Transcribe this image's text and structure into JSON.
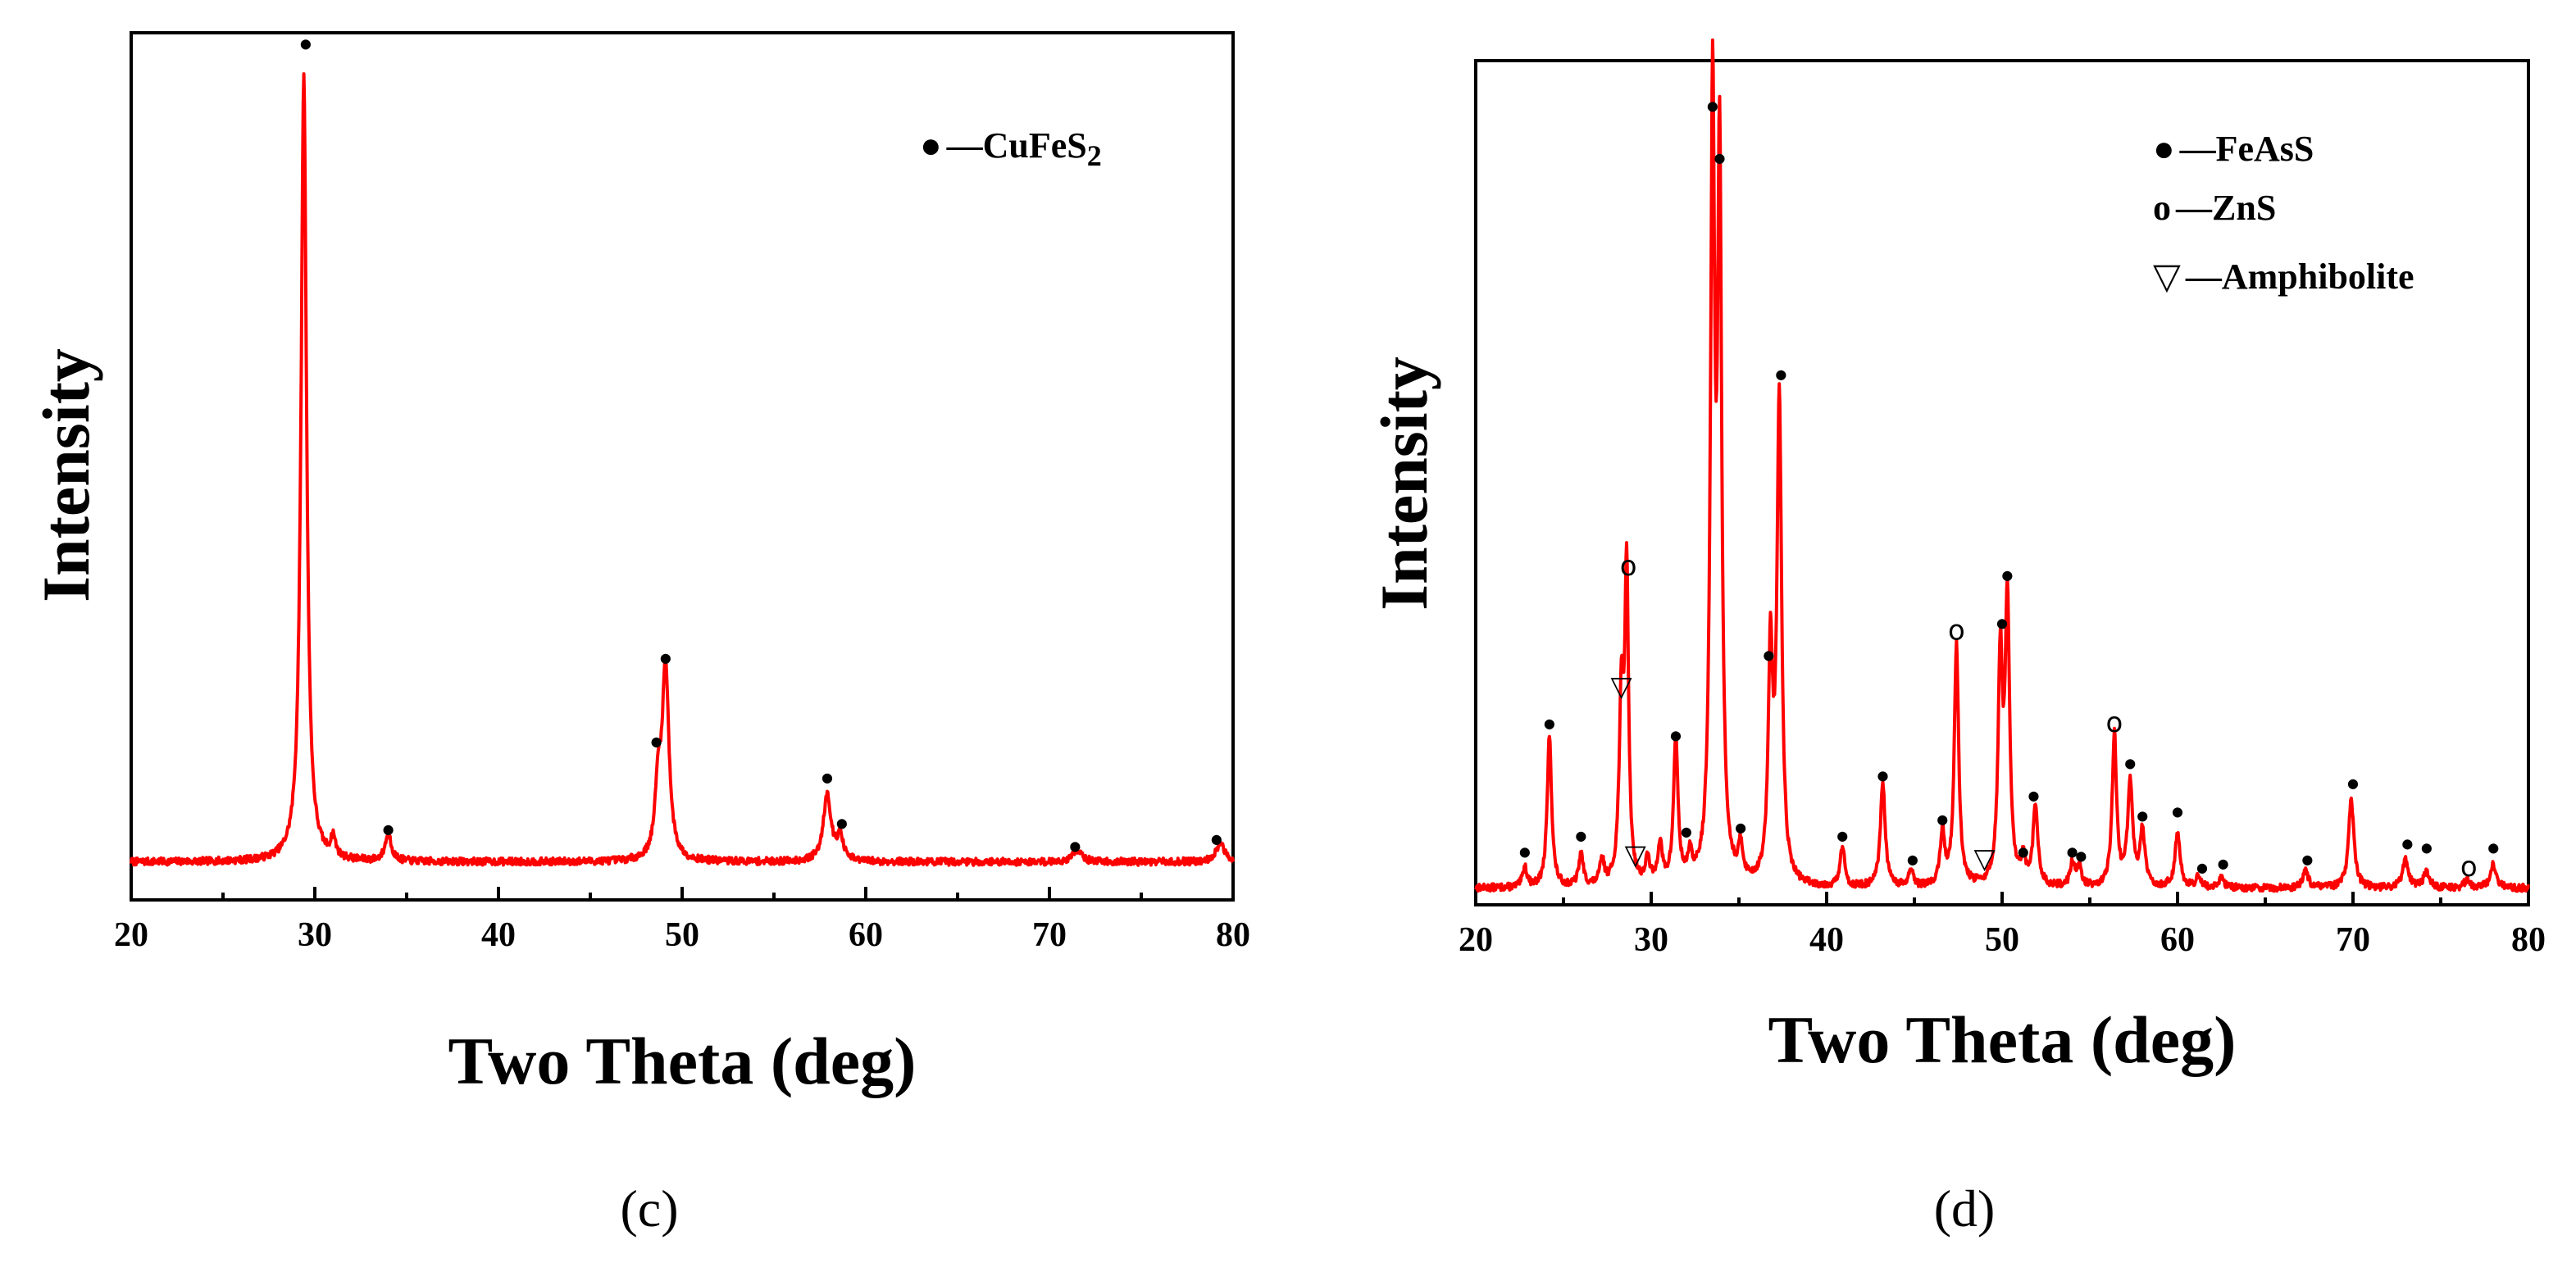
{
  "chart_data": [
    {
      "type": "line",
      "panel_label": "(c)",
      "xlabel": "Two Theta (deg)",
      "ylabel": "Intensity",
      "xlim": [
        20,
        80
      ],
      "ylim": [
        0,
        100
      ],
      "xticks": [
        20,
        30,
        40,
        50,
        60,
        70,
        80
      ],
      "baseline": 1.5,
      "trace_color": "#ff0000",
      "peaks": [
        {
          "x": 29.4,
          "h": 98.5,
          "w": 0.18
        },
        {
          "x": 31.0,
          "h": 2.5,
          "w": 0.15
        },
        {
          "x": 34.0,
          "h": 3.5,
          "w": 0.2
        },
        {
          "x": 48.7,
          "h": 8.5,
          "w": 0.2
        },
        {
          "x": 49.1,
          "h": 24.0,
          "w": 0.22
        },
        {
          "x": 57.9,
          "h": 8.5,
          "w": 0.25
        },
        {
          "x": 58.6,
          "h": 3.0,
          "w": 0.2
        },
        {
          "x": 71.5,
          "h": 1.5,
          "w": 0.3
        },
        {
          "x": 79.3,
          "h": 2.2,
          "w": 0.3
        }
      ],
      "legend": [
        {
          "symbol": "●",
          "dash": "—",
          "label": "CuFeS",
          "subscript": "2"
        }
      ],
      "markers": [
        {
          "x": 29.5,
          "y": 104,
          "symbol": "●",
          "phase": "CuFeS2"
        },
        {
          "x": 34.0,
          "y": 5.5,
          "symbol": "●",
          "phase": "CuFeS2"
        },
        {
          "x": 48.6,
          "y": 16.5,
          "symbol": "●",
          "phase": "CuFeS2"
        },
        {
          "x": 49.1,
          "y": 27.0,
          "symbol": "●",
          "phase": "CuFeS2"
        },
        {
          "x": 57.9,
          "y": 12.0,
          "symbol": "●",
          "phase": "CuFeS2"
        },
        {
          "x": 58.7,
          "y": 6.3,
          "symbol": "●",
          "phase": "CuFeS2"
        },
        {
          "x": 71.4,
          "y": 3.4,
          "symbol": "●",
          "phase": "CuFeS2"
        },
        {
          "x": 79.1,
          "y": 4.3,
          "symbol": "●",
          "phase": "CuFeS2"
        }
      ]
    },
    {
      "type": "line",
      "panel_label": "(d)",
      "xlabel": "Two Theta (deg)",
      "ylabel": "Intensity",
      "xlim": [
        20,
        80
      ],
      "ylim": [
        0,
        100
      ],
      "xticks": [
        20,
        30,
        40,
        50,
        60,
        70,
        80
      ],
      "baseline": 1.0,
      "trace_color": "#ff0000",
      "peaks": [
        {
          "x": 22.8,
          "h": 2.5,
          "w": 0.15
        },
        {
          "x": 24.2,
          "h": 19.0,
          "w": 0.15
        },
        {
          "x": 26.0,
          "h": 4.0,
          "w": 0.15
        },
        {
          "x": 27.2,
          "h": 3.0,
          "w": 0.15
        },
        {
          "x": 28.3,
          "h": 22.0,
          "w": 0.15
        },
        {
          "x": 28.6,
          "h": 38.0,
          "w": 0.13
        },
        {
          "x": 29.8,
          "h": 3.0,
          "w": 0.15
        },
        {
          "x": 30.5,
          "h": 5.0,
          "w": 0.15
        },
        {
          "x": 31.4,
          "h": 18.0,
          "w": 0.15
        },
        {
          "x": 32.2,
          "h": 3.0,
          "w": 0.15
        },
        {
          "x": 33.5,
          "h": 96.0,
          "w": 0.14
        },
        {
          "x": 33.9,
          "h": 88.0,
          "w": 0.14
        },
        {
          "x": 35.1,
          "h": 4.0,
          "w": 0.15
        },
        {
          "x": 36.8,
          "h": 28.0,
          "w": 0.15
        },
        {
          "x": 37.3,
          "h": 60.0,
          "w": 0.16
        },
        {
          "x": 40.9,
          "h": 5.0,
          "w": 0.15
        },
        {
          "x": 43.2,
          "h": 13.0,
          "w": 0.16
        },
        {
          "x": 44.8,
          "h": 2.0,
          "w": 0.15
        },
        {
          "x": 46.6,
          "h": 6.5,
          "w": 0.16
        },
        {
          "x": 47.4,
          "h": 30.0,
          "w": 0.15
        },
        {
          "x": 49.9,
          "h": 28.0,
          "w": 0.15
        },
        {
          "x": 50.3,
          "h": 35.0,
          "w": 0.15
        },
        {
          "x": 51.2,
          "h": 3.0,
          "w": 0.15
        },
        {
          "x": 51.9,
          "h": 10.0,
          "w": 0.16
        },
        {
          "x": 54.0,
          "h": 3.0,
          "w": 0.15
        },
        {
          "x": 54.4,
          "h": 2.5,
          "w": 0.15
        },
        {
          "x": 56.4,
          "h": 19.0,
          "w": 0.15
        },
        {
          "x": 57.3,
          "h": 13.0,
          "w": 0.17
        },
        {
          "x": 58.0,
          "h": 7.0,
          "w": 0.16
        },
        {
          "x": 60.0,
          "h": 7.0,
          "w": 0.17
        },
        {
          "x": 61.2,
          "h": 1.5,
          "w": 0.15
        },
        {
          "x": 62.5,
          "h": 1.5,
          "w": 0.15
        },
        {
          "x": 67.3,
          "h": 2.0,
          "w": 0.2
        },
        {
          "x": 69.9,
          "h": 11.0,
          "w": 0.18
        },
        {
          "x": 73.0,
          "h": 3.5,
          "w": 0.2
        },
        {
          "x": 74.2,
          "h": 2.0,
          "w": 0.2
        },
        {
          "x": 76.5,
          "h": 1.0,
          "w": 0.2
        },
        {
          "x": 78.0,
          "h": 3.0,
          "w": 0.2
        }
      ],
      "legend": [
        {
          "symbol": "●",
          "dash": "—",
          "label": "FeAsS"
        },
        {
          "symbol": "o",
          "dash": "—",
          "label": "ZnS"
        },
        {
          "symbol": "▽",
          "dash": "—",
          "label": "Amphibolite"
        }
      ],
      "markers": [
        {
          "x": 22.8,
          "y": 5.5,
          "symbol": "●",
          "phase": "FeAsS"
        },
        {
          "x": 24.2,
          "y": 21.5,
          "symbol": "●",
          "phase": "FeAsS"
        },
        {
          "x": 26.0,
          "y": 7.5,
          "symbol": "●",
          "phase": "FeAsS"
        },
        {
          "x": 28.3,
          "y": 26.0,
          "symbol": "▽",
          "phase": "Amphibolite"
        },
        {
          "x": 28.7,
          "y": 41.0,
          "symbol": "o",
          "phase": "ZnS"
        },
        {
          "x": 29.1,
          "y": 5.0,
          "symbol": "▽",
          "phase": "Amphibolite"
        },
        {
          "x": 31.4,
          "y": 20.0,
          "symbol": "●",
          "phase": "FeAsS"
        },
        {
          "x": 32.0,
          "y": 8.0,
          "symbol": "●",
          "phase": "FeAsS"
        },
        {
          "x": 33.5,
          "y": 98.5,
          "symbol": "●",
          "phase": "FeAsS"
        },
        {
          "x": 33.9,
          "y": 92.0,
          "symbol": "●",
          "phase": "FeAsS"
        },
        {
          "x": 35.1,
          "y": 8.5,
          "symbol": "●",
          "phase": "FeAsS"
        },
        {
          "x": 36.7,
          "y": 30.0,
          "symbol": "●",
          "phase": "FeAsS"
        },
        {
          "x": 37.4,
          "y": 65.0,
          "symbol": "●",
          "phase": "FeAsS"
        },
        {
          "x": 40.9,
          "y": 7.5,
          "symbol": "●",
          "phase": "FeAsS"
        },
        {
          "x": 43.2,
          "y": 15.0,
          "symbol": "●",
          "phase": "FeAsS"
        },
        {
          "x": 44.9,
          "y": 4.5,
          "symbol": "●",
          "phase": "FeAsS"
        },
        {
          "x": 46.6,
          "y": 9.5,
          "symbol": "●",
          "phase": "FeAsS"
        },
        {
          "x": 47.4,
          "y": 33.0,
          "symbol": "o",
          "phase": "ZnS"
        },
        {
          "x": 49.0,
          "y": 4.5,
          "symbol": "▽",
          "phase": "Amphibolite"
        },
        {
          "x": 50.0,
          "y": 34.0,
          "symbol": "●",
          "phase": "FeAsS"
        },
        {
          "x": 50.3,
          "y": 40.0,
          "symbol": "●",
          "phase": "FeAsS"
        },
        {
          "x": 51.2,
          "y": 5.5,
          "symbol": "●",
          "phase": "FeAsS"
        },
        {
          "x": 51.8,
          "y": 12.5,
          "symbol": "●",
          "phase": "FeAsS"
        },
        {
          "x": 54.0,
          "y": 5.5,
          "symbol": "●",
          "phase": "FeAsS"
        },
        {
          "x": 54.5,
          "y": 5.0,
          "symbol": "●",
          "phase": "FeAsS"
        },
        {
          "x": 56.4,
          "y": 21.5,
          "symbol": "o",
          "phase": "ZnS"
        },
        {
          "x": 57.3,
          "y": 16.5,
          "symbol": "●",
          "phase": "FeAsS"
        },
        {
          "x": 58.0,
          "y": 10.0,
          "symbol": "●",
          "phase": "FeAsS"
        },
        {
          "x": 60.0,
          "y": 10.5,
          "symbol": "●",
          "phase": "FeAsS"
        },
        {
          "x": 61.4,
          "y": 3.5,
          "symbol": "●",
          "phase": "FeAsS"
        },
        {
          "x": 62.6,
          "y": 4.0,
          "symbol": "●",
          "phase": "FeAsS"
        },
        {
          "x": 67.4,
          "y": 4.5,
          "symbol": "●",
          "phase": "FeAsS"
        },
        {
          "x": 70.0,
          "y": 14.0,
          "symbol": "●",
          "phase": "FeAsS"
        },
        {
          "x": 73.1,
          "y": 6.5,
          "symbol": "●",
          "phase": "FeAsS"
        },
        {
          "x": 74.2,
          "y": 6.0,
          "symbol": "●",
          "phase": "FeAsS"
        },
        {
          "x": 76.6,
          "y": 3.5,
          "symbol": "o",
          "phase": "ZnS"
        },
        {
          "x": 78.0,
          "y": 6.0,
          "symbol": "●",
          "phase": "FeAsS"
        }
      ]
    }
  ]
}
